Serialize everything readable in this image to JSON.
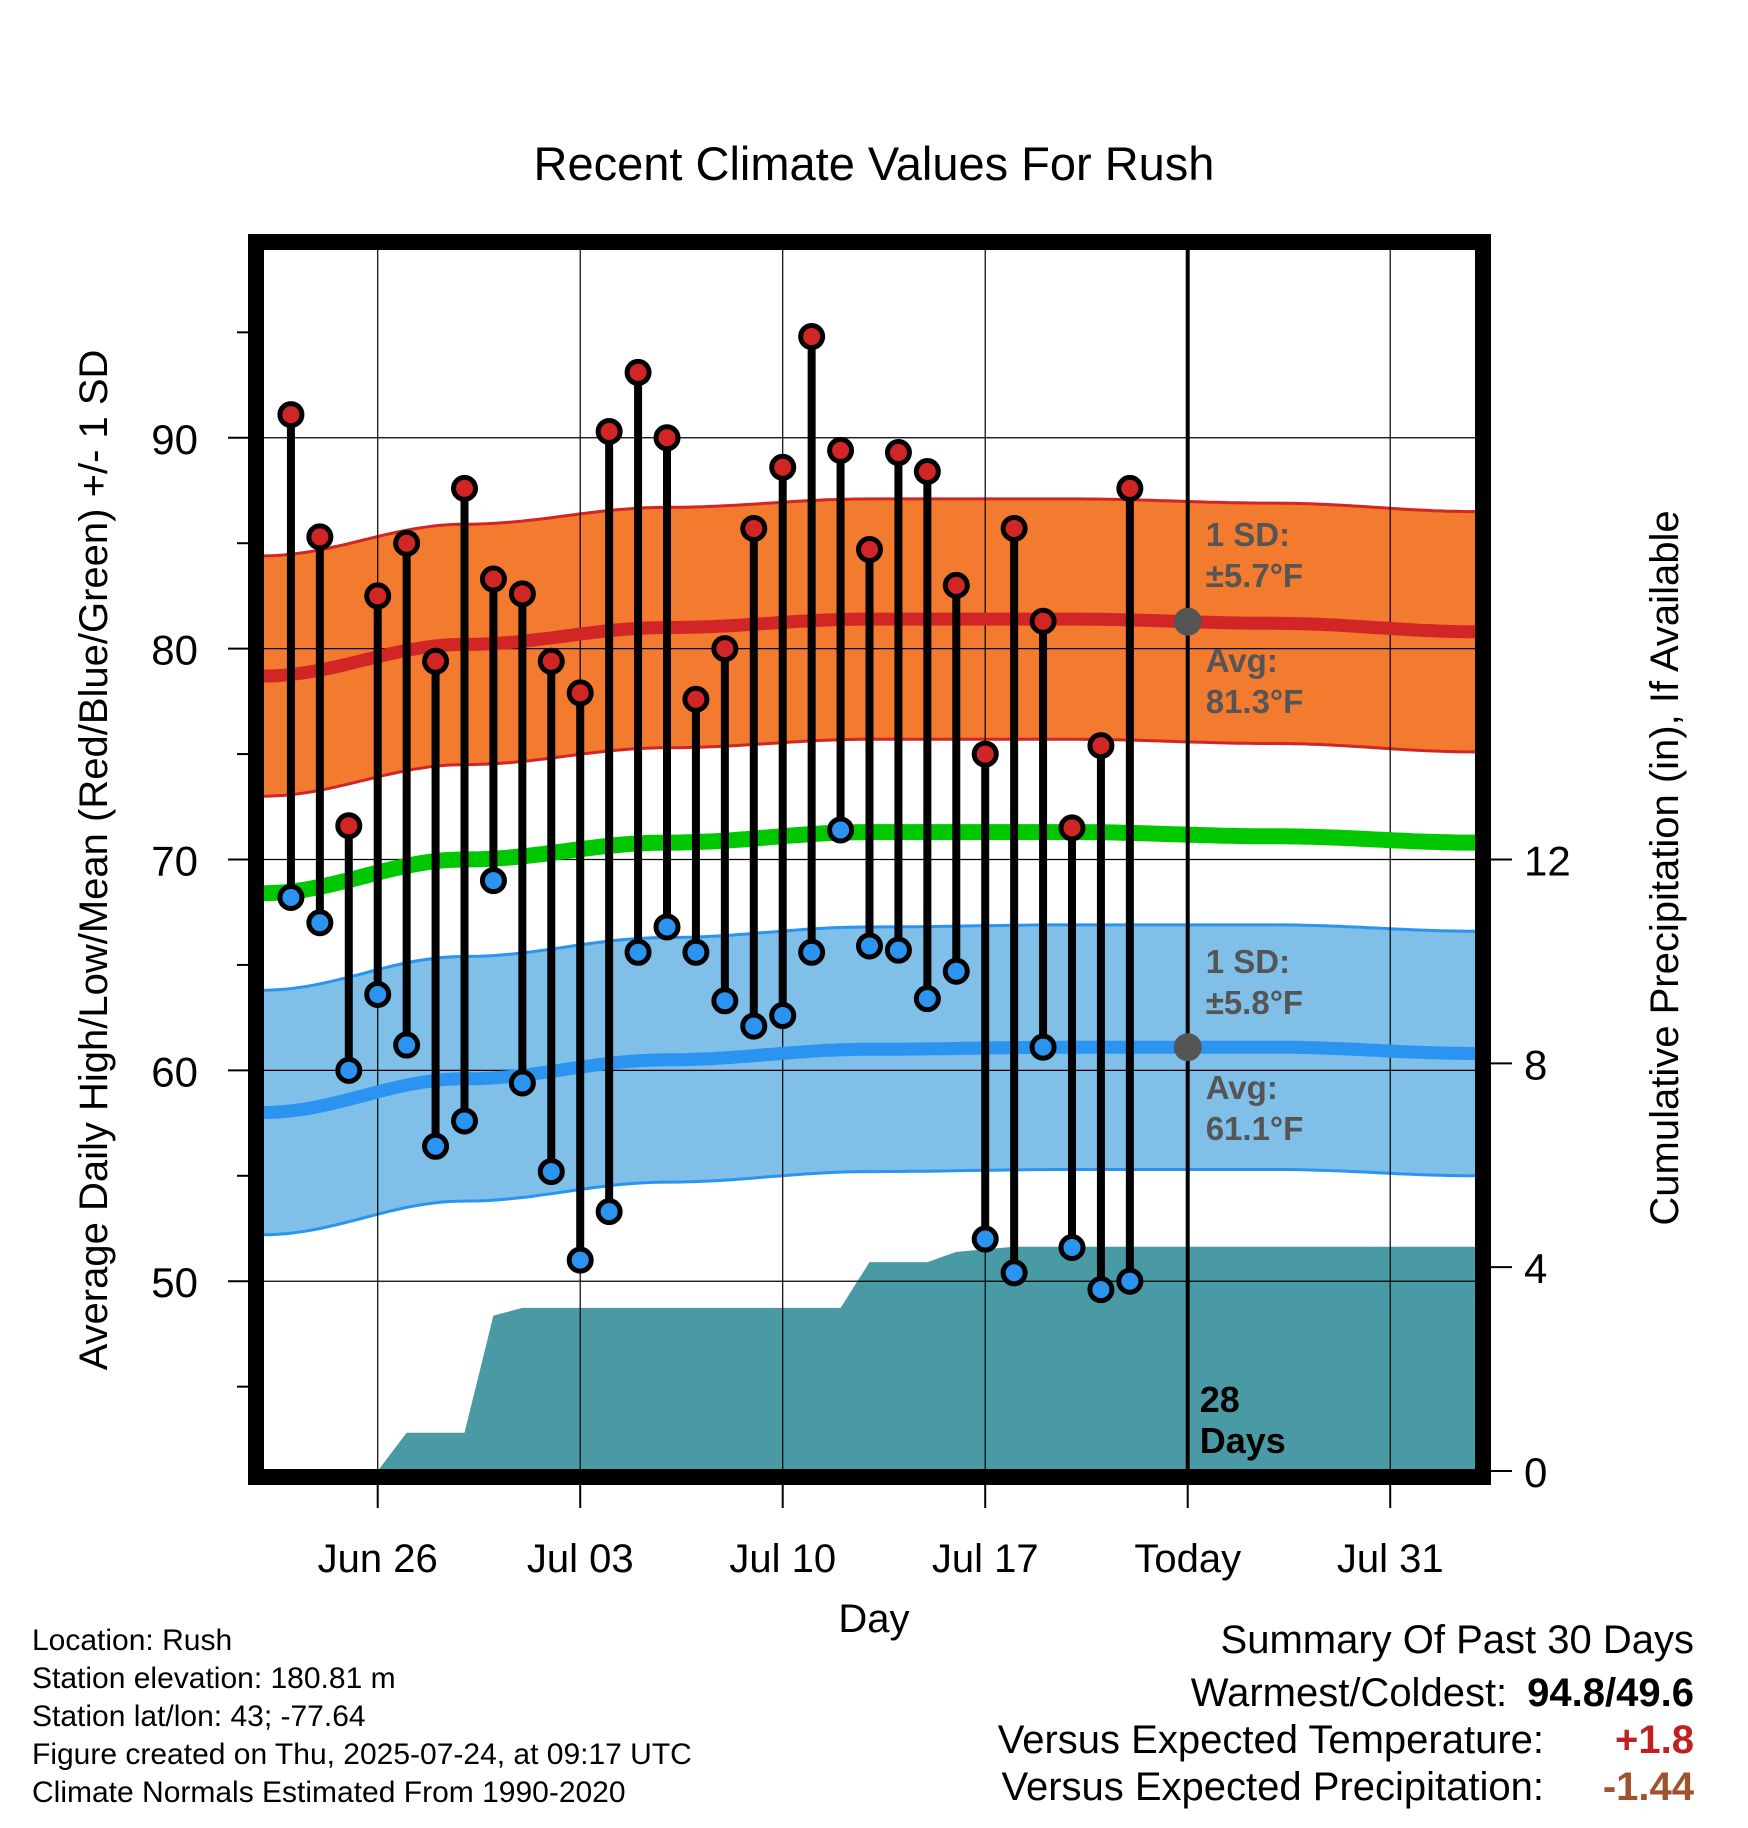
{
  "chart_data": {
    "type": "line",
    "title": "Recent Climate Values For Rush",
    "xlabel": "Day",
    "ylabel": "Average Daily High/Low/Mean (Red/Blue/Green) +/- 1 SD",
    "y2label": "Cumulative Precipitation (in), If Available",
    "xlim": [
      "2025-06-22",
      "2025-08-03"
    ],
    "ylim": [
      41,
      99
    ],
    "y2lim": [
      0,
      24
    ],
    "xticks": [
      {
        "date": "2025-06-26",
        "label": "Jun 26"
      },
      {
        "date": "2025-07-03",
        "label": "Jul 03"
      },
      {
        "date": "2025-07-10",
        "label": "Jul 10"
      },
      {
        "date": "2025-07-17",
        "label": "Jul 17"
      },
      {
        "date": "2025-07-24",
        "label": "Today"
      },
      {
        "date": "2025-07-31",
        "label": "Jul 31"
      }
    ],
    "yticks": [
      50,
      60,
      70,
      80,
      90
    ],
    "y2ticks": [
      0,
      4,
      8,
      12
    ],
    "grid": true,
    "today": "2025-07-24",
    "period_label": [
      "28",
      "Days"
    ],
    "normals_dates": [
      "2025-06-22",
      "2025-06-29",
      "2025-07-06",
      "2025-07-13",
      "2025-07-20",
      "2025-07-27",
      "2025-08-03"
    ],
    "normal_high": [
      78.7,
      80.2,
      81.0,
      81.4,
      81.4,
      81.2,
      80.8
    ],
    "normal_high_sd": 5.7,
    "normal_low": [
      58.0,
      59.6,
      60.5,
      61.0,
      61.1,
      61.1,
      60.8
    ],
    "normal_low_sd": 5.8,
    "normal_mean": [
      68.4,
      70.0,
      70.8,
      71.3,
      71.3,
      71.1,
      70.8
    ],
    "daily_dates": [
      "2025-06-23",
      "2025-06-24",
      "2025-06-25",
      "2025-06-26",
      "2025-06-27",
      "2025-06-28",
      "2025-06-29",
      "2025-06-30",
      "2025-07-01",
      "2025-07-02",
      "2025-07-03",
      "2025-07-04",
      "2025-07-05",
      "2025-07-06",
      "2025-07-07",
      "2025-07-08",
      "2025-07-09",
      "2025-07-10",
      "2025-07-11",
      "2025-07-12",
      "2025-07-13",
      "2025-07-14",
      "2025-07-15",
      "2025-07-16",
      "2025-07-17",
      "2025-07-18",
      "2025-07-19",
      "2025-07-20",
      "2025-07-21",
      "2025-07-22"
    ],
    "daily_high": [
      91.1,
      85.3,
      71.6,
      82.5,
      85.0,
      79.4,
      87.6,
      83.3,
      82.6,
      79.4,
      77.9,
      90.3,
      93.1,
      90.0,
      77.6,
      80.0,
      85.7,
      88.6,
      94.8,
      89.4,
      84.7,
      89.3,
      88.4,
      83.0,
      75.0,
      85.7,
      81.3,
      71.5,
      75.4,
      87.6
    ],
    "daily_low": [
      68.2,
      67.0,
      60.0,
      63.6,
      61.2,
      56.4,
      57.6,
      69.0,
      59.4,
      55.2,
      51.0,
      53.3,
      65.6,
      66.8,
      65.6,
      63.3,
      62.1,
      62.6,
      65.6,
      71.4,
      65.9,
      65.7,
      63.4,
      64.7,
      52.0,
      50.4,
      61.1,
      51.6,
      49.6,
      50.0
    ],
    "precip_dates": [
      "2025-06-22",
      "2025-06-26",
      "2025-06-27",
      "2025-06-29",
      "2025-06-30",
      "2025-07-01",
      "2025-07-03",
      "2025-07-12",
      "2025-07-13",
      "2025-07-15",
      "2025-07-16",
      "2025-07-18",
      "2025-07-21",
      "2025-07-24",
      "2025-08-03"
    ],
    "precip_cum": [
      0.0,
      0.0,
      0.75,
      0.75,
      3.05,
      3.2,
      3.2,
      3.2,
      4.1,
      4.1,
      4.3,
      4.4,
      4.4,
      4.4,
      4.4
    ],
    "annotations": {
      "high_sd": {
        "l1": "1 SD:",
        "l2": "±5.7°F"
      },
      "high_avg": {
        "l1": "Avg:",
        "l2": "81.3°F"
      },
      "low_sd": {
        "l1": "1 SD:",
        "l2": "±5.8°F"
      },
      "low_avg": {
        "l1": "Avg:",
        "l2": "61.1°F"
      }
    },
    "colors": {
      "high_band": "#f27b30",
      "high_line": "#d22525",
      "low_band": "#7fbfe8",
      "low_line": "#2a94f0",
      "mean_line": "#00c800",
      "precip": "#4a9aa6",
      "high_dot": "#d22525",
      "low_dot": "#2a94f0",
      "today_dot": "#555555",
      "annotation_text": "#555555"
    }
  },
  "info": {
    "location": "Location: Rush",
    "elevation": "Station elevation: 180.81 m",
    "latlon": "Station lat/lon: 43; -77.64",
    "created": "Figure created on Thu, 2025-07-24, at 09:17 UTC",
    "normals": "Climate Normals Estimated From 1990-2020"
  },
  "summary": {
    "title": "Summary Of Past 30 Days",
    "warmest_label": "Warmest/Coldest:",
    "warmest_value": "94.8/49.6",
    "temp_label": "Versus Expected Temperature:",
    "temp_value": "+1.8",
    "precip_label": "Versus Expected Precipitation:",
    "precip_value": "-1.44",
    "temp_color": "#c02020",
    "precip_color": "#a0522d"
  }
}
